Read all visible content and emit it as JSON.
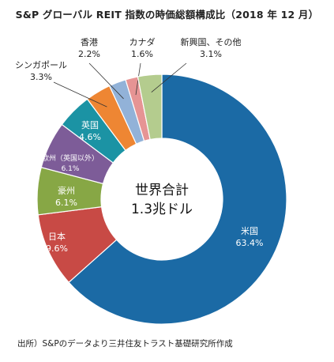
{
  "chart_data": {
    "type": "pie",
    "title": "S&P グローバル REIT 指数の時価総額構成比（2018 年 12 月）",
    "center_label": [
      "世界合計",
      "1.3兆ドル"
    ],
    "source": "出所）S&Pのデータより三井住友トラスト基礎研究所作成",
    "slices": [
      {
        "label": "米国",
        "value": 63.4,
        "value_text": "63.4%",
        "color": "#1b6aa5"
      },
      {
        "label": "日本",
        "value": 9.6,
        "value_text": "9.6%",
        "color": "#c84a45"
      },
      {
        "label": "豪州",
        "value": 6.1,
        "value_text": "6.1%",
        "color": "#87a745"
      },
      {
        "label": "欧州（英国以外）",
        "value": 6.1,
        "value_text": "6.1%",
        "color": "#7d5c98"
      },
      {
        "label": "英国",
        "value": 4.6,
        "value_text": "4.6%",
        "color": "#1b93a4"
      },
      {
        "label": "シンガポール",
        "value": 3.3,
        "value_text": "3.3%",
        "color": "#ee8633"
      },
      {
        "label": "香港",
        "value": 2.2,
        "value_text": "2.2%",
        "color": "#92b2d8"
      },
      {
        "label": "カナダ",
        "value": 1.6,
        "value_text": "1.6%",
        "color": "#e69494"
      },
      {
        "label": "新興国、その他",
        "value": 3.1,
        "value_text": "3.1%",
        "color": "#b4cc8e"
      }
    ]
  }
}
